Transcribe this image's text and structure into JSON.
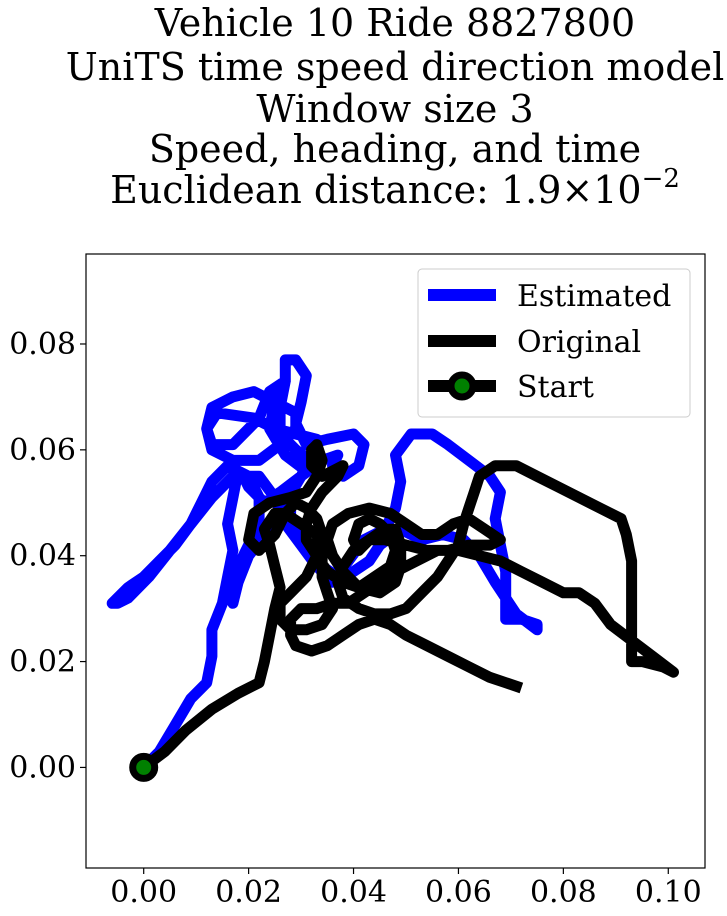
{
  "chart_data": {
    "type": "line",
    "title_lines": [
      "Vehicle 10 Ride 8827800",
      "UniTS time speed direction model",
      "Window size 3",
      "Speed, heading, and time"
    ],
    "title_distance_prefix": "Euclidean distance: ",
    "title_distance_mantissa": "1.9",
    "title_distance_times": "×",
    "title_distance_base": "10",
    "title_distance_exponent": "−2",
    "xlabel": "",
    "ylabel": "",
    "xlim": [
      -0.011,
      0.107
    ],
    "ylim": [
      -0.019,
      0.097
    ],
    "xticks": [
      0.0,
      0.02,
      0.04,
      0.06,
      0.08,
      0.1
    ],
    "xtick_labels": [
      "0.00",
      "0.02",
      "0.04",
      "0.06",
      "0.08",
      "0.10"
    ],
    "yticks": [
      0.0,
      0.02,
      0.04,
      0.06,
      0.08
    ],
    "ytick_labels": [
      "0.00",
      "0.02",
      "0.04",
      "0.06",
      "0.08"
    ],
    "grid": false,
    "legend_position": "top-right",
    "series": [
      {
        "name": "Estimated",
        "color": "#0000ff",
        "points": [
          [
            0.0,
            0.0
          ],
          [
            0.003,
            0.003
          ],
          [
            0.006,
            0.008
          ],
          [
            0.009,
            0.013
          ],
          [
            0.012,
            0.016
          ],
          [
            0.013,
            0.021
          ],
          [
            0.013,
            0.026
          ],
          [
            0.015,
            0.031
          ],
          [
            0.016,
            0.036
          ],
          [
            0.017,
            0.041
          ],
          [
            0.016,
            0.046
          ],
          [
            0.017,
            0.051
          ],
          [
            0.018,
            0.056
          ],
          [
            0.02,
            0.055
          ],
          [
            0.022,
            0.051
          ],
          [
            0.022,
            0.046
          ],
          [
            0.02,
            0.042
          ],
          [
            0.018,
            0.038
          ],
          [
            0.017,
            0.034
          ],
          [
            0.017,
            0.031
          ],
          [
            0.018,
            0.035
          ],
          [
            0.02,
            0.04
          ],
          [
            0.024,
            0.045
          ],
          [
            0.027,
            0.05
          ],
          [
            0.03,
            0.055
          ],
          [
            0.032,
            0.059
          ],
          [
            0.033,
            0.062
          ],
          [
            0.029,
            0.063
          ],
          [
            0.025,
            0.064
          ],
          [
            0.021,
            0.066
          ],
          [
            0.014,
            0.067
          ],
          [
            0.012,
            0.064
          ],
          [
            0.013,
            0.06
          ],
          [
            0.017,
            0.058
          ],
          [
            0.022,
            0.058
          ],
          [
            0.026,
            0.061
          ],
          [
            0.029,
            0.064
          ],
          [
            0.029,
            0.067
          ],
          [
            0.025,
            0.069
          ],
          [
            0.021,
            0.071
          ],
          [
            0.017,
            0.07
          ],
          [
            0.013,
            0.068
          ],
          [
            0.012,
            0.064
          ],
          [
            0.013,
            0.061
          ],
          [
            0.017,
            0.061
          ],
          [
            0.022,
            0.066
          ],
          [
            0.024,
            0.071
          ],
          [
            0.027,
            0.073
          ],
          [
            0.025,
            0.069
          ],
          [
            0.024,
            0.064
          ],
          [
            0.027,
            0.059
          ],
          [
            0.031,
            0.056
          ],
          [
            0.033,
            0.057
          ],
          [
            0.029,
            0.06
          ],
          [
            0.026,
            0.063
          ],
          [
            0.026,
            0.068
          ],
          [
            0.027,
            0.073
          ],
          [
            0.027,
            0.077
          ],
          [
            0.029,
            0.077
          ],
          [
            0.031,
            0.074
          ],
          [
            0.03,
            0.069
          ],
          [
            0.029,
            0.065
          ],
          [
            0.031,
            0.061
          ],
          [
            0.035,
            0.062
          ],
          [
            0.04,
            0.063
          ],
          [
            0.042,
            0.061
          ],
          [
            0.041,
            0.057
          ],
          [
            0.038,
            0.055
          ],
          [
            0.036,
            0.057
          ],
          [
            0.037,
            0.059
          ],
          [
            0.034,
            0.058
          ],
          [
            0.03,
            0.055
          ],
          [
            0.026,
            0.052
          ],
          [
            0.023,
            0.05
          ],
          [
            0.02,
            0.053
          ],
          [
            0.019,
            0.055
          ],
          [
            0.016,
            0.057
          ],
          [
            0.013,
            0.054
          ],
          [
            0.011,
            0.05
          ],
          [
            0.009,
            0.046
          ],
          [
            0.006,
            0.042
          ],
          [
            0.003,
            0.039
          ],
          [
            0.0,
            0.036
          ],
          [
            -0.003,
            0.034
          ],
          [
            -0.006,
            0.031
          ],
          [
            -0.005,
            0.031
          ],
          [
            -0.003,
            0.032
          ],
          [
            0.001,
            0.036
          ],
          [
            0.005,
            0.041
          ],
          [
            0.009,
            0.046
          ],
          [
            0.013,
            0.051
          ],
          [
            0.017,
            0.055
          ],
          [
            0.022,
            0.055
          ],
          [
            0.025,
            0.051
          ],
          [
            0.027,
            0.046
          ],
          [
            0.03,
            0.042
          ],
          [
            0.033,
            0.038
          ],
          [
            0.036,
            0.035
          ],
          [
            0.039,
            0.039
          ],
          [
            0.042,
            0.043
          ],
          [
            0.046,
            0.045
          ],
          [
            0.048,
            0.049
          ],
          [
            0.049,
            0.054
          ],
          [
            0.048,
            0.059
          ],
          [
            0.051,
            0.063
          ],
          [
            0.055,
            0.063
          ],
          [
            0.058,
            0.061
          ],
          [
            0.062,
            0.058
          ],
          [
            0.066,
            0.055
          ],
          [
            0.068,
            0.052
          ],
          [
            0.067,
            0.047
          ],
          [
            0.068,
            0.042
          ],
          [
            0.069,
            0.037
          ],
          [
            0.069,
            0.032
          ],
          [
            0.069,
            0.028
          ],
          [
            0.072,
            0.028
          ],
          [
            0.075,
            0.027
          ],
          [
            0.075,
            0.026
          ],
          [
            0.071,
            0.029
          ],
          [
            0.067,
            0.035
          ],
          [
            0.064,
            0.04
          ],
          [
            0.061,
            0.043
          ],
          [
            0.057,
            0.044
          ],
          [
            0.053,
            0.043
          ],
          [
            0.049,
            0.045
          ],
          [
            0.045,
            0.042
          ],
          [
            0.043,
            0.039
          ],
          [
            0.04,
            0.037
          ],
          [
            0.037,
            0.036
          ],
          [
            0.034,
            0.038
          ],
          [
            0.032,
            0.041
          ],
          [
            0.03,
            0.044
          ],
          [
            0.028,
            0.047
          ],
          [
            0.028,
            0.051
          ]
        ]
      },
      {
        "name": "Original",
        "color": "#000000",
        "points": [
          [
            0.0,
            0.0
          ],
          [
            0.004,
            0.003
          ],
          [
            0.008,
            0.007
          ],
          [
            0.013,
            0.011
          ],
          [
            0.018,
            0.014
          ],
          [
            0.022,
            0.016
          ],
          [
            0.023,
            0.02
          ],
          [
            0.024,
            0.025
          ],
          [
            0.025,
            0.03
          ],
          [
            0.026,
            0.034
          ],
          [
            0.025,
            0.038
          ],
          [
            0.024,
            0.042
          ],
          [
            0.023,
            0.045
          ],
          [
            0.025,
            0.048
          ],
          [
            0.027,
            0.048
          ],
          [
            0.03,
            0.046
          ],
          [
            0.033,
            0.044
          ],
          [
            0.034,
            0.04
          ],
          [
            0.034,
            0.036
          ],
          [
            0.035,
            0.033
          ],
          [
            0.036,
            0.03
          ],
          [
            0.034,
            0.027
          ],
          [
            0.031,
            0.026
          ],
          [
            0.028,
            0.026
          ],
          [
            0.026,
            0.028
          ],
          [
            0.026,
            0.031
          ],
          [
            0.028,
            0.033
          ],
          [
            0.031,
            0.036
          ],
          [
            0.033,
            0.04
          ],
          [
            0.034,
            0.044
          ],
          [
            0.033,
            0.047
          ],
          [
            0.031,
            0.049
          ],
          [
            0.029,
            0.05
          ],
          [
            0.027,
            0.048
          ],
          [
            0.025,
            0.044
          ],
          [
            0.022,
            0.041
          ],
          [
            0.02,
            0.043
          ],
          [
            0.021,
            0.048
          ],
          [
            0.024,
            0.05
          ],
          [
            0.028,
            0.051
          ],
          [
            0.031,
            0.052
          ],
          [
            0.033,
            0.055
          ],
          [
            0.034,
            0.058
          ],
          [
            0.033,
            0.061
          ],
          [
            0.032,
            0.06
          ],
          [
            0.032,
            0.057
          ],
          [
            0.034,
            0.055
          ],
          [
            0.036,
            0.056
          ],
          [
            0.038,
            0.057
          ],
          [
            0.037,
            0.055
          ],
          [
            0.034,
            0.052
          ],
          [
            0.032,
            0.049
          ],
          [
            0.031,
            0.046
          ],
          [
            0.031,
            0.043
          ],
          [
            0.033,
            0.04
          ],
          [
            0.035,
            0.037
          ],
          [
            0.038,
            0.035
          ],
          [
            0.041,
            0.034
          ],
          [
            0.044,
            0.036
          ],
          [
            0.047,
            0.038
          ],
          [
            0.048,
            0.041
          ],
          [
            0.047,
            0.044
          ],
          [
            0.045,
            0.046
          ],
          [
            0.043,
            0.047
          ],
          [
            0.041,
            0.046
          ],
          [
            0.04,
            0.043
          ],
          [
            0.041,
            0.041
          ],
          [
            0.043,
            0.043
          ],
          [
            0.046,
            0.045
          ],
          [
            0.048,
            0.045
          ],
          [
            0.049,
            0.042
          ],
          [
            0.049,
            0.038
          ],
          [
            0.048,
            0.035
          ],
          [
            0.045,
            0.033
          ],
          [
            0.041,
            0.034
          ],
          [
            0.038,
            0.037
          ],
          [
            0.036,
            0.04
          ],
          [
            0.035,
            0.043
          ],
          [
            0.036,
            0.046
          ],
          [
            0.039,
            0.048
          ],
          [
            0.043,
            0.049
          ],
          [
            0.047,
            0.048
          ],
          [
            0.05,
            0.046
          ],
          [
            0.053,
            0.044
          ],
          [
            0.056,
            0.044
          ],
          [
            0.059,
            0.046
          ],
          [
            0.062,
            0.047
          ],
          [
            0.065,
            0.045
          ],
          [
            0.068,
            0.043
          ],
          [
            0.066,
            0.042
          ],
          [
            0.062,
            0.042
          ],
          [
            0.058,
            0.041
          ],
          [
            0.054,
            0.041
          ],
          [
            0.05,
            0.042
          ],
          [
            0.046,
            0.043
          ],
          [
            0.043,
            0.043
          ],
          [
            0.04,
            0.041
          ],
          [
            0.038,
            0.038
          ],
          [
            0.037,
            0.035
          ],
          [
            0.038,
            0.032
          ],
          [
            0.041,
            0.03
          ],
          [
            0.044,
            0.029
          ],
          [
            0.047,
            0.029
          ],
          [
            0.05,
            0.03
          ],
          [
            0.053,
            0.033
          ],
          [
            0.056,
            0.036
          ],
          [
            0.058,
            0.039
          ],
          [
            0.06,
            0.042
          ],
          [
            0.061,
            0.046
          ],
          [
            0.062,
            0.049
          ],
          [
            0.063,
            0.052
          ],
          [
            0.064,
            0.055
          ],
          [
            0.067,
            0.057
          ],
          [
            0.071,
            0.057
          ],
          [
            0.075,
            0.055
          ],
          [
            0.079,
            0.053
          ],
          [
            0.083,
            0.051
          ],
          [
            0.087,
            0.049
          ],
          [
            0.091,
            0.047
          ],
          [
            0.092,
            0.044
          ],
          [
            0.093,
            0.039
          ],
          [
            0.093,
            0.034
          ],
          [
            0.093,
            0.029
          ],
          [
            0.093,
            0.024
          ],
          [
            0.093,
            0.02
          ],
          [
            0.095,
            0.02
          ],
          [
            0.099,
            0.019
          ],
          [
            0.101,
            0.018
          ],
          [
            0.097,
            0.021
          ],
          [
            0.093,
            0.024
          ],
          [
            0.089,
            0.027
          ],
          [
            0.086,
            0.031
          ],
          [
            0.083,
            0.033
          ],
          [
            0.08,
            0.033
          ],
          [
            0.076,
            0.035
          ],
          [
            0.072,
            0.037
          ],
          [
            0.068,
            0.039
          ],
          [
            0.064,
            0.04
          ],
          [
            0.06,
            0.041
          ],
          [
            0.056,
            0.041
          ],
          [
            0.052,
            0.039
          ],
          [
            0.048,
            0.037
          ],
          [
            0.045,
            0.035
          ],
          [
            0.042,
            0.033
          ],
          [
            0.039,
            0.031
          ],
          [
            0.036,
            0.031
          ],
          [
            0.033,
            0.03
          ],
          [
            0.03,
            0.03
          ],
          [
            0.028,
            0.028
          ],
          [
            0.028,
            0.025
          ],
          [
            0.029,
            0.023
          ],
          [
            0.032,
            0.022
          ],
          [
            0.035,
            0.023
          ],
          [
            0.038,
            0.025
          ],
          [
            0.041,
            0.027
          ],
          [
            0.044,
            0.028
          ],
          [
            0.047,
            0.027
          ],
          [
            0.05,
            0.025
          ],
          [
            0.054,
            0.023
          ],
          [
            0.058,
            0.021
          ],
          [
            0.062,
            0.019
          ],
          [
            0.066,
            0.017
          ],
          [
            0.069,
            0.016
          ],
          [
            0.072,
            0.015
          ]
        ]
      }
    ],
    "start_marker": {
      "name": "Start",
      "x": 0.0,
      "y": 0.0,
      "fill_color": "#008000",
      "edge_color": "#000000"
    }
  }
}
